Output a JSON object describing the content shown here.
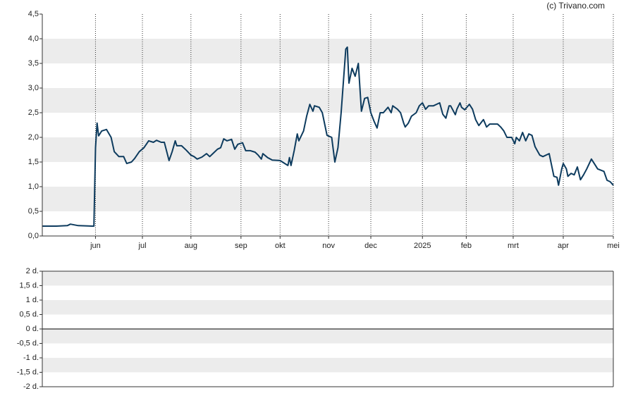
{
  "chart_data": [
    {
      "type": "line",
      "annotation": "(c) Trivano.com",
      "color": "#0d3b5e",
      "grid": true,
      "xlim": [
        0,
        365
      ],
      "xticks": [
        {
          "value": 34,
          "label": "jun"
        },
        {
          "value": 64,
          "label": "jul"
        },
        {
          "value": 95,
          "label": "aug"
        },
        {
          "value": 127,
          "label": "sep"
        },
        {
          "value": 152,
          "label": "okt"
        },
        {
          "value": 183,
          "label": "nov"
        },
        {
          "value": 210,
          "label": "dec"
        },
        {
          "value": 243,
          "label": "2025"
        },
        {
          "value": 271,
          "label": "feb"
        },
        {
          "value": 301,
          "label": "mrt"
        },
        {
          "value": 333,
          "label": "apr"
        },
        {
          "value": 365,
          "label": "mei"
        }
      ],
      "ylim": [
        0,
        4.5
      ],
      "yticks": [
        {
          "value": 0,
          "label": "0,0"
        },
        {
          "value": 0.5,
          "label": "0,5"
        },
        {
          "value": 1,
          "label": "1,0"
        },
        {
          "value": 1.5,
          "label": "1,5"
        },
        {
          "value": 2,
          "label": "2,0"
        },
        {
          "value": 2.5,
          "label": "2,5"
        },
        {
          "value": 3,
          "label": "3,0"
        },
        {
          "value": 3.5,
          "label": "3,5"
        },
        {
          "value": 4,
          "label": "4,0"
        },
        {
          "value": 4.5,
          "label": "4,5"
        }
      ],
      "x": [
        0,
        9,
        16,
        18,
        23,
        32,
        33,
        34,
        35,
        36,
        38,
        41,
        44,
        46,
        49,
        52,
        54,
        57,
        59,
        62,
        65,
        68,
        71,
        73,
        76,
        78,
        81,
        83,
        85,
        86,
        89,
        92,
        95,
        97,
        99,
        102,
        105,
        107,
        109,
        112,
        114,
        116,
        118,
        121,
        123,
        125,
        128,
        130,
        133,
        136,
        138,
        140,
        141,
        144,
        147,
        152,
        155,
        157,
        158,
        159,
        161,
        163,
        164,
        167,
        169,
        171,
        173,
        174,
        177,
        179,
        182,
        185,
        187,
        189,
        191,
        194,
        195,
        196,
        198,
        200,
        202,
        204,
        206,
        208,
        210,
        212,
        214,
        216,
        218,
        221,
        223,
        224,
        227,
        229,
        231,
        232,
        234,
        236,
        239,
        241,
        243,
        245,
        247,
        250,
        252,
        254,
        256,
        258,
        260,
        261,
        264,
        265,
        267,
        268,
        270,
        273,
        275,
        277,
        279,
        282,
        284,
        286,
        291,
        293,
        295,
        297,
        300,
        302,
        303,
        305,
        307,
        309,
        311,
        313,
        315,
        318,
        320,
        324,
        327,
        329,
        330,
        332,
        333,
        335,
        336,
        338,
        340,
        342,
        344,
        346,
        348,
        351,
        353,
        355,
        359,
        361,
        363,
        365
      ],
      "values": [
        0.2,
        0.2,
        0.21,
        0.24,
        0.21,
        0.2,
        0.2,
        1.79,
        2.29,
        2.03,
        2.13,
        2.16,
        2.0,
        1.71,
        1.61,
        1.61,
        1.47,
        1.5,
        1.57,
        1.71,
        1.79,
        1.93,
        1.9,
        1.94,
        1.9,
        1.9,
        1.53,
        1.71,
        1.93,
        1.83,
        1.83,
        1.74,
        1.64,
        1.61,
        1.56,
        1.6,
        1.67,
        1.61,
        1.67,
        1.76,
        1.79,
        1.97,
        1.93,
        1.96,
        1.76,
        1.86,
        1.89,
        1.73,
        1.73,
        1.7,
        1.64,
        1.56,
        1.67,
        1.59,
        1.54,
        1.53,
        1.47,
        1.43,
        1.59,
        1.43,
        1.73,
        2.07,
        1.93,
        2.13,
        2.43,
        2.67,
        2.53,
        2.64,
        2.61,
        2.5,
        2.04,
        2.0,
        1.5,
        1.79,
        2.5,
        3.79,
        3.83,
        3.1,
        3.4,
        3.24,
        3.5,
        2.53,
        2.79,
        2.81,
        2.5,
        2.33,
        2.19,
        2.5,
        2.5,
        2.61,
        2.5,
        2.64,
        2.57,
        2.5,
        2.29,
        2.21,
        2.29,
        2.43,
        2.5,
        2.64,
        2.7,
        2.57,
        2.64,
        2.64,
        2.67,
        2.7,
        2.47,
        2.39,
        2.64,
        2.64,
        2.46,
        2.57,
        2.7,
        2.61,
        2.56,
        2.67,
        2.57,
        2.36,
        2.24,
        2.36,
        2.21,
        2.27,
        2.27,
        2.21,
        2.13,
        2.0,
        2.0,
        1.87,
        2.0,
        1.93,
        2.1,
        1.93,
        2.07,
        2.04,
        1.81,
        1.64,
        1.61,
        1.67,
        1.21,
        1.19,
        1.03,
        1.36,
        1.47,
        1.36,
        1.21,
        1.27,
        1.24,
        1.4,
        1.14,
        1.24,
        1.36,
        1.56,
        1.46,
        1.36,
        1.31,
        1.13,
        1.1,
        1.03
      ]
    },
    {
      "type": "line",
      "grid": true,
      "ylim": [
        -2,
        2
      ],
      "yticks": [
        {
          "value": -2,
          "label": "-2 d."
        },
        {
          "value": -1.5,
          "label": "-1,5 d."
        },
        {
          "value": -1,
          "label": "-1 d."
        },
        {
          "value": -0.5,
          "label": "-0,5 d."
        },
        {
          "value": 0,
          "label": "0 d."
        },
        {
          "value": 0.5,
          "label": "0,5 d."
        },
        {
          "value": 1,
          "label": "1 d."
        },
        {
          "value": 1.5,
          "label": "1,5 d."
        },
        {
          "value": 2,
          "label": "2 d."
        }
      ]
    }
  ]
}
